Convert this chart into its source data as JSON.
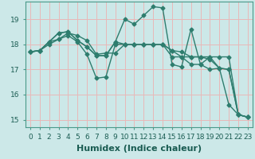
{
  "bg_color": "#cce8e8",
  "plot_bg_color": "#cce8e8",
  "grid_color": "#e8b8b8",
  "line_color": "#2e7d6e",
  "marker": "D",
  "markersize": 2.5,
  "linewidth": 1.0,
  "xlabel": "Humidex (Indice chaleur)",
  "xlabel_fontsize": 8,
  "tick_fontsize": 6.5,
  "xlim": [
    -0.5,
    23.5
  ],
  "ylim": [
    14.7,
    19.7
  ],
  "yticks": [
    15,
    16,
    17,
    18,
    19
  ],
  "xticks": [
    0,
    1,
    2,
    3,
    4,
    5,
    6,
    7,
    8,
    9,
    10,
    11,
    12,
    13,
    14,
    15,
    16,
    17,
    18,
    19,
    20,
    21,
    22,
    23
  ],
  "series": [
    [
      17.7,
      17.75,
      18.0,
      18.2,
      18.45,
      18.35,
      18.15,
      17.6,
      17.65,
      17.65,
      18.0,
      18.0,
      18.0,
      18.0,
      18.0,
      17.75,
      17.7,
      17.5,
      17.5,
      17.5,
      17.5,
      17.5,
      15.2,
      15.1
    ],
    [
      17.7,
      17.75,
      18.1,
      18.45,
      18.5,
      18.15,
      17.9,
      17.55,
      17.55,
      18.1,
      19.0,
      18.8,
      19.15,
      19.5,
      19.45,
      17.2,
      17.1,
      18.6,
      17.2,
      17.0,
      17.05,
      15.6,
      15.2,
      15.1
    ],
    [
      17.7,
      17.75,
      18.1,
      18.45,
      18.5,
      18.15,
      17.9,
      17.55,
      17.55,
      18.1,
      18.0,
      18.0,
      18.0,
      18.0,
      18.0,
      17.75,
      17.5,
      17.5,
      17.5,
      17.4,
      17.05,
      17.0,
      15.2,
      15.1
    ],
    [
      17.7,
      17.75,
      18.1,
      18.2,
      18.35,
      18.1,
      17.6,
      16.65,
      16.7,
      18.0,
      18.0,
      18.0,
      18.0,
      18.0,
      18.0,
      17.5,
      17.5,
      17.2,
      17.2,
      17.5,
      17.05,
      17.0,
      15.2,
      15.1
    ]
  ]
}
